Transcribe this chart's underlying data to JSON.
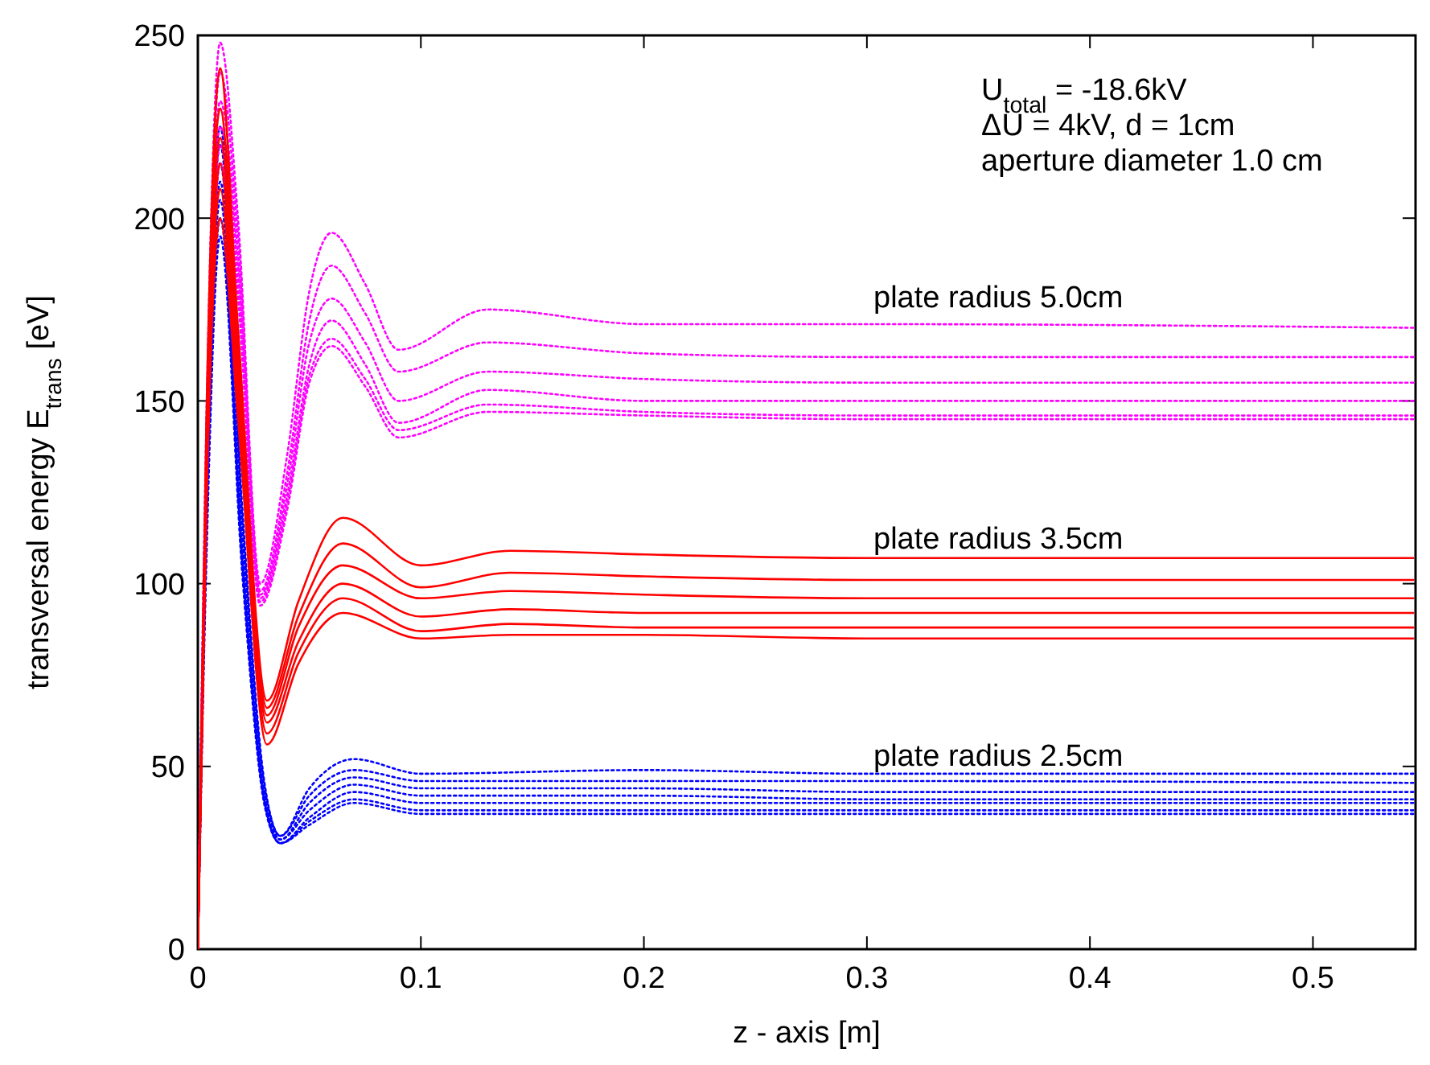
{
  "chart_data": {
    "type": "line",
    "xlabel": "z - axis [m]",
    "ylabel": "transversal energy E$_{trans}$ [eV]",
    "xlim": [
      0,
      0.546
    ],
    "ylim": [
      0,
      250
    ],
    "xticks": [
      0,
      0.1,
      0.2,
      0.3,
      0.4,
      0.5
    ],
    "yticks": [
      0,
      50,
      100,
      150,
      200,
      250
    ],
    "grid": false,
    "annotations": [
      "U$_{total}$ = -18.6kV",
      "ΔU = 4kV, d = 1cm",
      "aperture diameter 1.0 cm",
      "plate radius 5.0cm",
      "plate radius 3.5cm",
      "plate radius 2.5cm"
    ],
    "series": [
      {
        "color": "#0000ff",
        "line_style": "dotted",
        "x": [
          0,
          0.004,
          0.01,
          0.02,
          0.03,
          0.037,
          0.05,
          0.07,
          0.1,
          0.2,
          0.3,
          0.545
        ],
        "values": [
          0,
          140,
          225,
          120,
          45,
          31,
          44,
          52,
          48,
          49,
          48,
          48
        ]
      },
      {
        "color": "#0000ff",
        "line_style": "dotted",
        "x": [
          0,
          0.004,
          0.01,
          0.02,
          0.03,
          0.037,
          0.05,
          0.07,
          0.1,
          0.2,
          0.3,
          0.545
        ],
        "values": [
          0,
          135,
          220,
          117,
          44,
          31,
          42,
          49,
          46,
          46,
          46,
          45.5
        ]
      },
      {
        "color": "#0000ff",
        "line_style": "dotted",
        "x": [
          0,
          0.004,
          0.01,
          0.02,
          0.03,
          0.037,
          0.05,
          0.07,
          0.1,
          0.2,
          0.3,
          0.545
        ],
        "values": [
          0,
          130,
          215,
          114,
          43,
          30,
          40,
          47,
          44,
          44,
          43,
          43
        ]
      },
      {
        "color": "#0000ff",
        "line_style": "dotted",
        "x": [
          0,
          0.004,
          0.01,
          0.02,
          0.03,
          0.037,
          0.05,
          0.07,
          0.1,
          0.2,
          0.3,
          0.545
        ],
        "values": [
          0,
          125,
          210,
          111,
          42,
          30,
          38,
          45,
          42,
          42,
          41,
          41
        ]
      },
      {
        "color": "#0000ff",
        "line_style": "dotted",
        "x": [
          0,
          0.004,
          0.01,
          0.02,
          0.03,
          0.037,
          0.05,
          0.07,
          0.1,
          0.2,
          0.3,
          0.545
        ],
        "values": [
          0,
          120,
          205,
          108,
          41,
          29,
          36,
          43,
          40,
          40,
          40,
          40
        ]
      },
      {
        "color": "#0000ff",
        "line_style": "dotted",
        "x": [
          0,
          0.004,
          0.01,
          0.02,
          0.03,
          0.037,
          0.05,
          0.07,
          0.1,
          0.2,
          0.3,
          0.545
        ],
        "values": [
          0,
          115,
          200,
          105,
          40,
          29,
          35,
          41,
          38,
          38,
          38,
          38
        ]
      },
      {
        "color": "#0000ff",
        "line_style": "dotted",
        "x": [
          0,
          0.004,
          0.01,
          0.02,
          0.03,
          0.037,
          0.05,
          0.07,
          0.1,
          0.2,
          0.3,
          0.545
        ],
        "values": [
          0,
          110,
          195,
          102,
          39,
          29,
          34,
          40,
          37,
          37,
          37,
          37
        ]
      },
      {
        "color": "#ff00ff",
        "line_style": "dotted",
        "x": [
          0,
          0.004,
          0.01,
          0.018,
          0.028,
          0.04,
          0.05,
          0.06,
          0.075,
          0.09,
          0.13,
          0.2,
          0.3,
          0.545
        ],
        "values": [
          0,
          150,
          248,
          200,
          100,
          135,
          180,
          196,
          182,
          164,
          175,
          171,
          171,
          170
        ]
      },
      {
        "color": "#ff00ff",
        "line_style": "dotted",
        "x": [
          0,
          0.004,
          0.01,
          0.018,
          0.028,
          0.04,
          0.05,
          0.06,
          0.075,
          0.09,
          0.13,
          0.2,
          0.3,
          0.545
        ],
        "values": [
          0,
          145,
          240,
          195,
          98,
          130,
          172,
          187,
          174,
          158,
          166,
          163,
          162,
          162
        ]
      },
      {
        "color": "#ff00ff",
        "line_style": "dotted",
        "x": [
          0,
          0.004,
          0.01,
          0.018,
          0.028,
          0.04,
          0.05,
          0.06,
          0.075,
          0.09,
          0.13,
          0.2,
          0.3,
          0.545
        ],
        "values": [
          0,
          140,
          232,
          190,
          97,
          127,
          166,
          178,
          166,
          150,
          158,
          156,
          155,
          155
        ]
      },
      {
        "color": "#ff00ff",
        "line_style": "dotted",
        "x": [
          0,
          0.004,
          0.01,
          0.018,
          0.028,
          0.04,
          0.05,
          0.06,
          0.075,
          0.09,
          0.13,
          0.2,
          0.3,
          0.545
        ],
        "values": [
          0,
          135,
          225,
          186,
          96,
          124,
          160,
          172,
          160,
          144,
          153,
          150,
          150,
          150
        ]
      },
      {
        "color": "#ff00ff",
        "line_style": "dotted",
        "x": [
          0,
          0.004,
          0.01,
          0.018,
          0.028,
          0.04,
          0.05,
          0.06,
          0.075,
          0.09,
          0.13,
          0.2,
          0.3,
          0.545
        ],
        "values": [
          0,
          130,
          220,
          182,
          95,
          122,
          157,
          167,
          156,
          142,
          149,
          147,
          146,
          146
        ]
      },
      {
        "color": "#ff00ff",
        "line_style": "dotted",
        "x": [
          0,
          0.004,
          0.01,
          0.018,
          0.028,
          0.04,
          0.05,
          0.06,
          0.075,
          0.09,
          0.13,
          0.2,
          0.3,
          0.545
        ],
        "values": [
          0,
          125,
          215,
          178,
          94,
          120,
          155,
          165,
          154,
          140,
          147,
          146,
          145,
          145
        ]
      },
      {
        "color": "#ff0000",
        "line_style": "solid",
        "x": [
          0,
          0.004,
          0.01,
          0.018,
          0.031,
          0.045,
          0.065,
          0.1,
          0.14,
          0.2,
          0.3,
          0.545
        ],
        "values": [
          0,
          150,
          241,
          170,
          68,
          95,
          118,
          105,
          109,
          108,
          107,
          107
        ]
      },
      {
        "color": "#ff0000",
        "line_style": "solid",
        "x": [
          0,
          0.004,
          0.01,
          0.018,
          0.031,
          0.045,
          0.065,
          0.1,
          0.14,
          0.2,
          0.3,
          0.545
        ],
        "values": [
          0,
          145,
          230,
          165,
          66,
          91,
          111,
          99,
          103,
          102,
          101,
          101
        ]
      },
      {
        "color": "#ff0000",
        "line_style": "solid",
        "x": [
          0,
          0.004,
          0.01,
          0.018,
          0.031,
          0.045,
          0.065,
          0.1,
          0.14,
          0.2,
          0.3,
          0.545
        ],
        "values": [
          0,
          140,
          222,
          160,
          64,
          88,
          105,
          96,
          98,
          97,
          96,
          96
        ]
      },
      {
        "color": "#ff0000",
        "line_style": "solid",
        "x": [
          0,
          0.004,
          0.01,
          0.018,
          0.031,
          0.045,
          0.065,
          0.1,
          0.14,
          0.2,
          0.3,
          0.545
        ],
        "values": [
          0,
          135,
          215,
          155,
          62,
          84,
          100,
          91,
          93,
          92,
          92,
          92
        ]
      },
      {
        "color": "#ff0000",
        "line_style": "solid",
        "x": [
          0,
          0.004,
          0.01,
          0.018,
          0.031,
          0.045,
          0.065,
          0.1,
          0.14,
          0.2,
          0.3,
          0.545
        ],
        "values": [
          0,
          130,
          208,
          150,
          59,
          81,
          96,
          87,
          89,
          88,
          88,
          88
        ]
      },
      {
        "color": "#ff0000",
        "line_style": "solid",
        "x": [
          0,
          0.004,
          0.01,
          0.018,
          0.031,
          0.045,
          0.065,
          0.1,
          0.14,
          0.2,
          0.3,
          0.545
        ],
        "values": [
          0,
          125,
          200,
          145,
          56,
          78,
          92,
          85,
          86,
          86,
          85,
          85
        ]
      }
    ]
  }
}
